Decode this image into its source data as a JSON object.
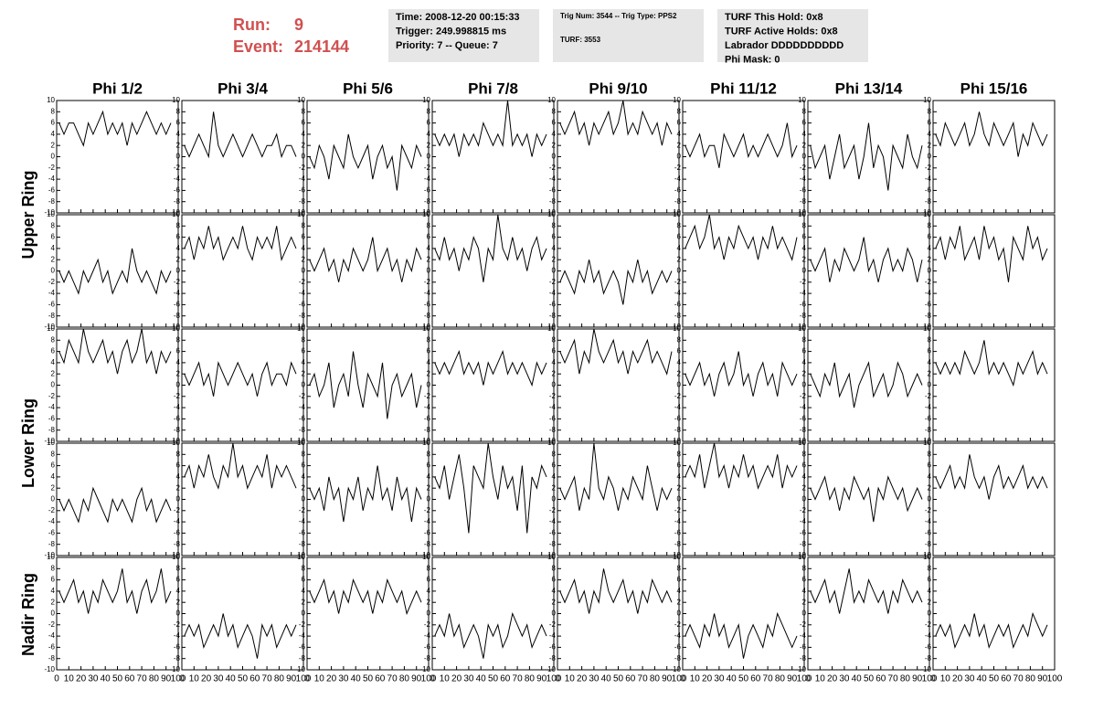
{
  "header": {
    "run_label": "Run:",
    "run": "9",
    "event_label": "Event:",
    "event": "214144",
    "info_boxes": [
      [
        "Time: 2008-12-20 00:15:33",
        "Trigger: 249.998815 ms",
        "Priority: 7 -- Queue: 7"
      ],
      [
        "Trig Num: 3544 -- Trig Type: PPS2",
        "TURF: 3553"
      ],
      [
        "TURF This Hold: 0x8",
        "TURF Active Holds: 0x8",
        "Labrador DDDDDDDDDD",
        "Phi Mask: 0"
      ]
    ]
  },
  "chart_data": {
    "type": "line",
    "columns": [
      "Phi 1/2",
      "Phi 3/4",
      "Phi 5/6",
      "Phi 7/8",
      "Phi 9/10",
      "Phi 11/12",
      "Phi 13/14",
      "Phi 15/16"
    ],
    "ring_labels": [
      "Upper Ring",
      "Lower Ring",
      "Nadir Ring"
    ],
    "color": "#000000",
    "xlim": [
      0,
      100
    ],
    "xticks": [
      0,
      10,
      20,
      30,
      40,
      50,
      60,
      70,
      80,
      90,
      100
    ],
    "ylim": [
      -10,
      10
    ],
    "yticks": [
      -10,
      -8,
      -6,
      -4,
      -2,
      0,
      2,
      4,
      6,
      8,
      10
    ],
    "x": [
      2,
      6,
      10,
      14,
      18,
      22,
      26,
      30,
      34,
      38,
      42,
      46,
      50,
      54,
      58,
      62,
      66,
      70,
      74,
      78,
      82,
      86,
      90,
      94
    ],
    "panels": [
      [
        [
          6,
          4,
          6,
          6,
          4,
          2,
          6,
          4,
          6,
          8,
          4,
          6,
          4,
          6,
          2,
          6,
          4,
          6,
          8,
          6,
          4,
          6,
          4,
          6
        ],
        [
          2,
          0,
          2,
          4,
          2,
          0,
          8,
          2,
          0,
          2,
          4,
          2,
          0,
          2,
          4,
          2,
          0,
          2,
          2,
          4,
          0,
          2,
          2,
          0
        ],
        [
          0,
          -2,
          2,
          0,
          -4,
          2,
          0,
          -2,
          4,
          0,
          -2,
          0,
          2,
          -4,
          0,
          2,
          -2,
          0,
          -6,
          2,
          0,
          -2,
          2,
          0
        ],
        [
          4,
          2,
          4,
          2,
          4,
          0,
          4,
          2,
          4,
          2,
          6,
          4,
          2,
          4,
          2,
          10,
          2,
          4,
          2,
          4,
          0,
          4,
          2,
          4
        ],
        [
          6,
          4,
          6,
          8,
          4,
          6,
          2,
          6,
          4,
          6,
          8,
          4,
          6,
          10,
          4,
          6,
          4,
          8,
          6,
          4,
          6,
          2,
          6,
          4
        ],
        [
          2,
          0,
          2,
          4,
          0,
          2,
          2,
          -2,
          4,
          2,
          0,
          2,
          4,
          0,
          2,
          0,
          2,
          4,
          2,
          0,
          2,
          6,
          0,
          2
        ],
        [
          2,
          -2,
          0,
          2,
          -4,
          0,
          4,
          -2,
          0,
          2,
          -4,
          0,
          6,
          -2,
          2,
          0,
          -6,
          2,
          0,
          -2,
          4,
          0,
          -2,
          2
        ],
        [
          4,
          2,
          6,
          4,
          2,
          4,
          6,
          2,
          4,
          8,
          4,
          2,
          6,
          4,
          2,
          4,
          6,
          0,
          4,
          2,
          6,
          4,
          2,
          4
        ]
      ],
      [
        [
          0,
          -2,
          0,
          -2,
          -4,
          0,
          -2,
          0,
          2,
          -2,
          0,
          -4,
          -2,
          0,
          -2,
          4,
          0,
          -2,
          0,
          -2,
          -4,
          0,
          -2,
          0
        ],
        [
          4,
          6,
          2,
          6,
          4,
          8,
          4,
          6,
          2,
          4,
          6,
          4,
          8,
          4,
          2,
          6,
          4,
          6,
          4,
          8,
          2,
          4,
          6,
          4
        ],
        [
          2,
          0,
          2,
          4,
          0,
          2,
          -2,
          2,
          0,
          4,
          2,
          0,
          2,
          6,
          0,
          2,
          4,
          0,
          2,
          -2,
          2,
          0,
          4,
          2
        ],
        [
          4,
          2,
          6,
          2,
          4,
          0,
          4,
          2,
          6,
          4,
          -2,
          4,
          2,
          10,
          4,
          2,
          6,
          2,
          4,
          0,
          4,
          6,
          2,
          4
        ],
        [
          -2,
          0,
          -2,
          -4,
          0,
          -2,
          2,
          -2,
          0,
          -4,
          -2,
          0,
          -2,
          -6,
          0,
          -2,
          2,
          -2,
          0,
          -4,
          -2,
          0,
          -2,
          0
        ],
        [
          4,
          6,
          8,
          4,
          6,
          10,
          4,
          6,
          2,
          6,
          4,
          8,
          6,
          4,
          6,
          2,
          6,
          4,
          8,
          4,
          6,
          4,
          2,
          6
        ],
        [
          2,
          0,
          2,
          4,
          -2,
          2,
          0,
          4,
          2,
          0,
          2,
          6,
          0,
          2,
          -2,
          2,
          4,
          0,
          2,
          0,
          4,
          2,
          -2,
          2
        ],
        [
          4,
          6,
          2,
          6,
          4,
          8,
          2,
          4,
          6,
          2,
          8,
          4,
          6,
          2,
          4,
          -2,
          6,
          4,
          2,
          8,
          4,
          6,
          2,
          4
        ]
      ],
      [
        [
          6,
          4,
          8,
          6,
          4,
          10,
          6,
          4,
          6,
          8,
          4,
          6,
          2,
          6,
          8,
          4,
          6,
          10,
          4,
          6,
          2,
          6,
          4,
          6
        ],
        [
          2,
          0,
          2,
          4,
          0,
          2,
          -2,
          4,
          2,
          0,
          2,
          4,
          2,
          0,
          2,
          -2,
          2,
          4,
          0,
          2,
          2,
          0,
          4,
          2
        ],
        [
          0,
          2,
          -2,
          0,
          4,
          -4,
          0,
          2,
          -2,
          6,
          0,
          -4,
          2,
          0,
          -2,
          4,
          -6,
          0,
          2,
          -2,
          0,
          2,
          -4,
          0
        ],
        [
          4,
          2,
          4,
          2,
          4,
          6,
          2,
          4,
          2,
          4,
          0,
          4,
          2,
          4,
          6,
          2,
          4,
          2,
          4,
          2,
          0,
          4,
          2,
          4
        ],
        [
          6,
          4,
          6,
          8,
          2,
          6,
          4,
          10,
          6,
          4,
          6,
          8,
          4,
          6,
          2,
          6,
          4,
          6,
          8,
          4,
          6,
          4,
          2,
          6
        ],
        [
          2,
          0,
          2,
          4,
          0,
          2,
          -2,
          2,
          4,
          0,
          2,
          6,
          0,
          2,
          -2,
          2,
          4,
          0,
          2,
          -2,
          4,
          2,
          0,
          2
        ],
        [
          2,
          0,
          -2,
          2,
          0,
          4,
          -2,
          0,
          2,
          -4,
          0,
          2,
          4,
          -2,
          0,
          2,
          -2,
          0,
          4,
          2,
          -2,
          0,
          2,
          0
        ],
        [
          4,
          2,
          4,
          2,
          4,
          2,
          6,
          4,
          2,
          4,
          8,
          2,
          4,
          2,
          4,
          2,
          0,
          4,
          2,
          4,
          6,
          2,
          4,
          2
        ]
      ],
      [
        [
          0,
          -2,
          0,
          -2,
          -4,
          0,
          -2,
          2,
          0,
          -2,
          -4,
          0,
          -2,
          0,
          -2,
          -4,
          0,
          2,
          -2,
          0,
          -4,
          -2,
          0,
          -2
        ],
        [
          4,
          6,
          2,
          6,
          4,
          8,
          4,
          2,
          6,
          4,
          10,
          4,
          6,
          2,
          4,
          6,
          4,
          8,
          2,
          6,
          4,
          6,
          4,
          2
        ],
        [
          2,
          0,
          2,
          -2,
          4,
          0,
          2,
          -4,
          2,
          0,
          4,
          -2,
          2,
          0,
          6,
          0,
          2,
          -2,
          4,
          0,
          2,
          -4,
          2,
          0
        ],
        [
          4,
          2,
          6,
          0,
          4,
          8,
          2,
          -6,
          6,
          4,
          2,
          10,
          4,
          0,
          6,
          2,
          4,
          -2,
          6,
          -6,
          4,
          2,
          6,
          4
        ],
        [
          2,
          0,
          2,
          4,
          -2,
          2,
          0,
          10,
          2,
          0,
          4,
          2,
          -2,
          2,
          0,
          4,
          2,
          0,
          6,
          2,
          -2,
          2,
          0,
          2
        ],
        [
          4,
          6,
          4,
          8,
          2,
          6,
          10,
          4,
          6,
          2,
          6,
          4,
          8,
          4,
          6,
          2,
          4,
          6,
          4,
          8,
          2,
          6,
          4,
          6
        ],
        [
          2,
          0,
          2,
          4,
          0,
          2,
          -2,
          2,
          0,
          4,
          2,
          0,
          2,
          -4,
          2,
          0,
          4,
          2,
          0,
          2,
          -2,
          0,
          2,
          0
        ],
        [
          4,
          2,
          4,
          6,
          2,
          4,
          2,
          8,
          4,
          2,
          4,
          0,
          4,
          6,
          2,
          4,
          2,
          4,
          6,
          2,
          4,
          2,
          4,
          2
        ]
      ],
      [
        [
          4,
          2,
          4,
          6,
          2,
          4,
          0,
          4,
          2,
          6,
          4,
          2,
          4,
          8,
          2,
          4,
          0,
          4,
          6,
          2,
          4,
          8,
          2,
          4
        ],
        [
          -4,
          -2,
          -4,
          -2,
          -6,
          -4,
          -2,
          -4,
          0,
          -4,
          -2,
          -6,
          -4,
          -2,
          -4,
          -8,
          -2,
          -4,
          -2,
          -6,
          -4,
          -2,
          -4,
          -2
        ],
        [
          4,
          2,
          4,
          6,
          2,
          4,
          0,
          4,
          2,
          6,
          4,
          2,
          4,
          0,
          4,
          2,
          6,
          4,
          2,
          4,
          0,
          2,
          4,
          2
        ],
        [
          -4,
          -2,
          -4,
          0,
          -4,
          -2,
          -6,
          -4,
          -2,
          -4,
          -8,
          -2,
          -4,
          -2,
          -6,
          -4,
          0,
          -2,
          -4,
          -2,
          -6,
          -4,
          -2,
          -4
        ],
        [
          4,
          2,
          4,
          6,
          2,
          4,
          0,
          4,
          2,
          8,
          4,
          2,
          4,
          6,
          2,
          4,
          0,
          4,
          2,
          6,
          4,
          2,
          4,
          2
        ],
        [
          -4,
          -2,
          -4,
          -6,
          -2,
          -4,
          0,
          -4,
          -2,
          -6,
          -4,
          -2,
          -8,
          -4,
          -2,
          -4,
          -6,
          -2,
          -4,
          0,
          -2,
          -4,
          -6,
          -4
        ],
        [
          4,
          2,
          4,
          6,
          2,
          4,
          0,
          4,
          8,
          2,
          4,
          2,
          6,
          4,
          2,
          4,
          0,
          4,
          2,
          6,
          4,
          2,
          4,
          2
        ],
        [
          -4,
          -2,
          -4,
          -2,
          -6,
          -4,
          -2,
          -4,
          0,
          -4,
          -2,
          -6,
          -4,
          -2,
          -4,
          -2,
          -6,
          -4,
          -2,
          -4,
          0,
          -2,
          -4,
          -2
        ]
      ]
    ]
  }
}
